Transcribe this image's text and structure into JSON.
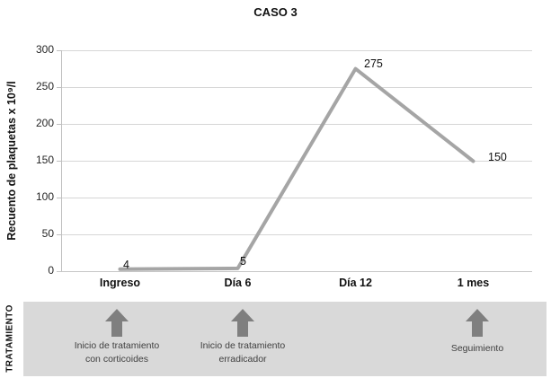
{
  "chart_data": {
    "type": "line",
    "title": "CASO 3",
    "categories": [
      "Ingreso",
      "Día 6",
      "Día 12",
      "1 mes"
    ],
    "values": [
      4,
      5,
      275,
      150
    ],
    "ylabel": "Recuento de plaquetas x 10⁹/l",
    "xlabel": "",
    "ylim": [
      0,
      300
    ],
    "yticks": [
      "0",
      "50",
      "100",
      "150",
      "200",
      "250",
      "300"
    ],
    "ytick_interval": 50,
    "grid": true,
    "legend": false,
    "series_color": "#a5a5a5"
  },
  "treatment_band": {
    "side_label": "TRATAMIENTO",
    "band_color": "#d9d9d9",
    "arrow_color": "#7f7f7f",
    "annotations": [
      {
        "line1": "Inicio de tratamiento",
        "line2": "con corticoides"
      },
      {
        "line1": "Inicio de tratamiento",
        "line2": "erradicador"
      },
      {
        "line1": "Seguimiento",
        "line2": ""
      }
    ]
  }
}
